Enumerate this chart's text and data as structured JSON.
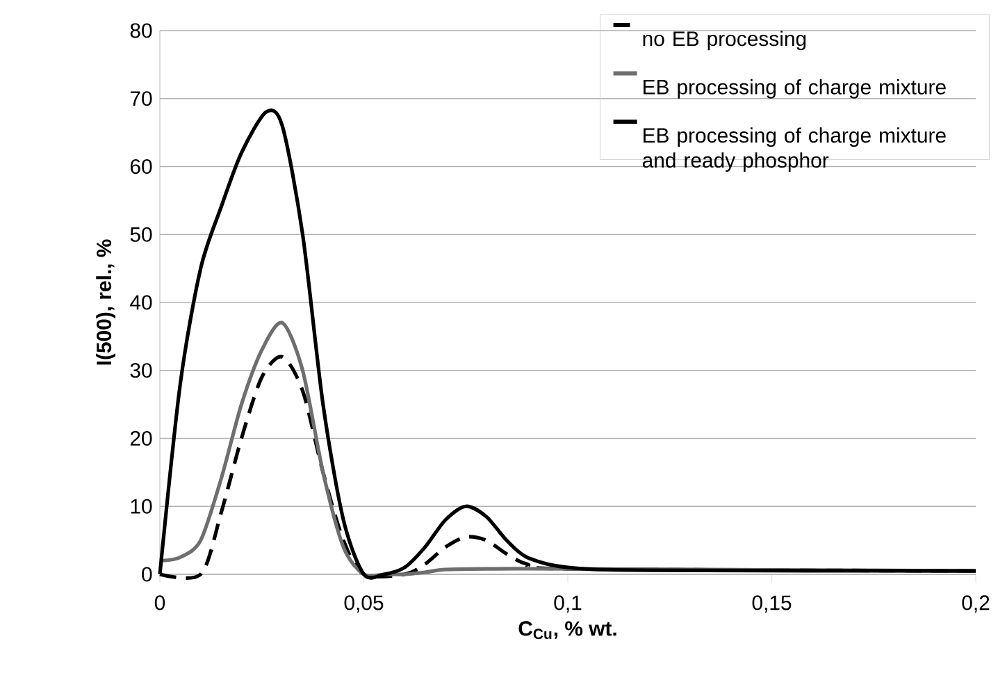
{
  "chart_data": {
    "type": "line",
    "xlabel": "C$_{Cu}$, % wt.",
    "ylabel": "I(500), rel., %",
    "xlim": [
      0,
      0.2
    ],
    "ylim": [
      0,
      80
    ],
    "xticks": [
      0,
      {
        "value": 0.05,
        "label": "0,05"
      },
      {
        "value": 0.1,
        "label": "0,1"
      },
      {
        "value": 0.15,
        "label": "0,15"
      },
      {
        "value": 0.2,
        "label": "0,2"
      }
    ],
    "yticks": [
      0,
      10,
      20,
      30,
      40,
      50,
      60,
      70,
      80
    ],
    "grid": "y",
    "legend": "top right",
    "marker": "none",
    "series": [
      {
        "name": "no EB processing",
        "color": "#000000",
        "line_style": "dashed",
        "x": [
          0,
          0.01,
          0.015,
          0.02,
          0.025,
          0.03,
          0.035,
          0.04,
          0.045,
          0.05,
          0.06,
          0.065,
          0.07,
          0.075,
          0.08,
          0.085,
          0.09,
          0.1,
          0.2
        ],
        "values": [
          0,
          0,
          9,
          20,
          29,
          32,
          27,
          15,
          5,
          0,
          0,
          1.5,
          4,
          5.5,
          5,
          3,
          1.5,
          0.8,
          0.5
        ]
      },
      {
        "name": "EB processing of charge mixture",
        "color": "#6e6e6e",
        "line_style": "solid",
        "x": [
          0,
          0.005,
          0.01,
          0.015,
          0.02,
          0.025,
          0.03,
          0.035,
          0.04,
          0.045,
          0.05,
          0.055,
          0.06,
          0.065,
          0.07,
          0.08,
          0.1,
          0.2
        ],
        "values": [
          2,
          2.5,
          5,
          14,
          25,
          33,
          37,
          30,
          15,
          4,
          0,
          0,
          0,
          0.3,
          0.7,
          0.8,
          0.8,
          0.5
        ]
      },
      {
        "name": "EB processing of charge mixture and ready phosphor",
        "color": "#000000",
        "line_style": "solid",
        "x": [
          0,
          0.005,
          0.01,
          0.015,
          0.02,
          0.026,
          0.03,
          0.035,
          0.04,
          0.045,
          0.05,
          0.055,
          0.06,
          0.065,
          0.07,
          0.075,
          0.08,
          0.085,
          0.09,
          0.1,
          0.12,
          0.2
        ],
        "values": [
          0,
          28,
          45,
          54,
          62,
          68,
          66,
          50,
          25,
          8,
          0,
          0,
          1,
          4,
          8,
          10,
          8.5,
          5,
          2.5,
          1,
          0.6,
          0.5
        ]
      }
    ]
  }
}
